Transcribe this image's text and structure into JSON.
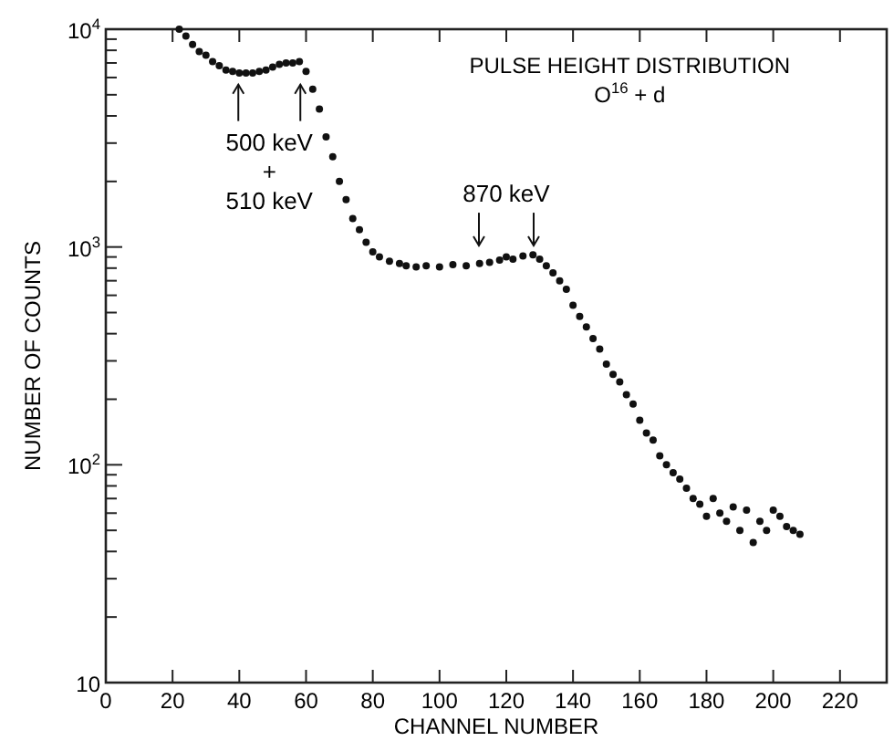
{
  "chart_data": {
    "type": "scatter",
    "title": "PULSE HEIGHT DISTRIBUTION",
    "subtitle": "O$^{16}$ + d",
    "xlabel": "CHANNEL NUMBER",
    "ylabel": "NUMBER OF COUNTS",
    "log": "y",
    "marker": "circle",
    "grid": false,
    "xlim": [
      0,
      234
    ],
    "xticks": [
      0,
      20,
      40,
      60,
      80,
      100,
      120,
      140,
      160,
      180,
      200,
      220
    ],
    "ylim": [
      10,
      10000
    ],
    "yticks": [
      {
        "value": 10,
        "label": "10"
      },
      {
        "value": 20,
        "label": null
      },
      {
        "value": 30,
        "label": null
      },
      {
        "value": 40,
        "label": null
      },
      {
        "value": 50,
        "label": null
      },
      {
        "value": 60,
        "label": null
      },
      {
        "value": 70,
        "label": null
      },
      {
        "value": 80,
        "label": null
      },
      {
        "value": 90,
        "label": null
      },
      {
        "value": 100,
        "label": "10$^{2}$"
      },
      {
        "value": 200,
        "label": null
      },
      {
        "value": 300,
        "label": null
      },
      {
        "value": 400,
        "label": null
      },
      {
        "value": 500,
        "label": null
      },
      {
        "value": 600,
        "label": null
      },
      {
        "value": 700,
        "label": null
      },
      {
        "value": 800,
        "label": null
      },
      {
        "value": 900,
        "label": null
      },
      {
        "value": 1000,
        "label": "10$^{3}$"
      },
      {
        "value": 2000,
        "label": null
      },
      {
        "value": 3000,
        "label": null
      },
      {
        "value": 4000,
        "label": null
      },
      {
        "value": 5000,
        "label": null
      },
      {
        "value": 6000,
        "label": null
      },
      {
        "value": 7000,
        "label": null
      },
      {
        "value": 8000,
        "label": null
      },
      {
        "value": 9000,
        "label": null
      },
      {
        "value": 10000,
        "label": "10$^{4}$"
      }
    ],
    "annotations": [
      {
        "text": "500 keV\n+\n510 keV",
        "x": 49,
        "y": 6500
      },
      {
        "text": "870 keV",
        "x": 120,
        "y": 870
      }
    ],
    "series": [
      {
        "color": "#111111",
        "x": [
          22,
          24,
          26,
          28,
          30,
          32,
          34,
          36,
          38,
          40,
          42,
          44,
          46,
          48,
          50,
          52,
          54,
          56,
          58,
          60,
          62,
          64,
          66,
          68,
          70,
          72,
          74,
          76,
          78,
          80,
          82,
          85,
          88,
          90,
          93,
          96,
          100,
          104,
          108,
          112,
          115,
          118,
          120,
          122,
          125,
          128,
          130,
          132,
          134,
          136,
          138,
          140,
          142,
          144,
          146,
          148,
          150,
          152,
          154,
          156,
          158,
          160,
          162,
          164,
          166,
          168,
          170,
          172,
          174,
          176,
          178,
          180,
          182,
          184,
          186,
          188,
          190,
          192,
          194,
          196,
          198,
          200,
          202,
          204,
          206,
          208
        ],
        "values": [
          10000,
          9300,
          8500,
          7900,
          7600,
          7100,
          6800,
          6500,
          6400,
          6300,
          6300,
          6300,
          6400,
          6500,
          6700,
          6900,
          7000,
          7000,
          7100,
          6400,
          5300,
          4300,
          3200,
          2600,
          2000,
          1650,
          1350,
          1200,
          1050,
          950,
          900,
          860,
          840,
          820,
          810,
          820,
          810,
          830,
          820,
          840,
          850,
          870,
          900,
          880,
          910,
          920,
          880,
          820,
          760,
          700,
          640,
          540,
          480,
          430,
          380,
          340,
          290,
          260,
          240,
          210,
          190,
          160,
          140,
          130,
          110,
          100,
          92,
          86,
          78,
          70,
          66,
          58,
          70,
          60,
          55,
          64,
          50,
          62,
          44,
          55,
          50,
          62,
          58,
          52,
          50,
          48
        ]
      }
    ]
  }
}
